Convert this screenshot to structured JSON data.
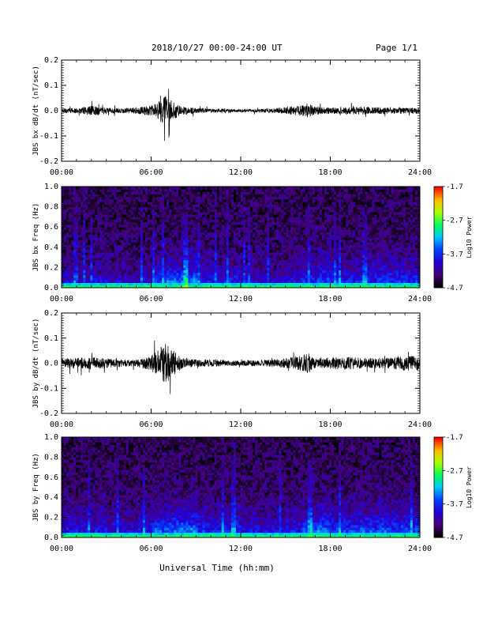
{
  "header": {
    "title": "2018/10/27  00:00-24:00 UT",
    "page": "Page 1/1"
  },
  "footer": {
    "xlabel": "Universal Time (hh:mm)"
  },
  "chart_data": [
    {
      "type": "line",
      "ylabel": "JBS bx dB/dt (nT/sec)",
      "ylim": [
        -0.2,
        0.2
      ],
      "yticks": [
        "-0.2",
        "-0.1",
        "0.0",
        "0.1",
        "0.2"
      ],
      "xlim": [
        "00:00",
        "24:00"
      ],
      "xticks": [
        "00:00",
        "06:00",
        "12:00",
        "18:00",
        "24:00"
      ],
      "series": [
        {
          "color": "#000000",
          "x_hours": [
            0,
            1,
            2,
            3,
            4,
            5,
            6,
            6.5,
            7,
            7.5,
            8,
            9,
            10,
            11,
            12,
            13,
            14,
            15,
            16,
            16.5,
            17,
            18,
            19,
            20,
            21,
            22,
            23,
            24
          ],
          "amplitude": [
            0.01,
            0.01,
            0.02,
            0.012,
            0.01,
            0.012,
            0.02,
            0.04,
            0.06,
            0.035,
            0.018,
            0.01,
            0.008,
            0.008,
            0.006,
            0.007,
            0.009,
            0.014,
            0.02,
            0.03,
            0.016,
            0.012,
            0.014,
            0.016,
            0.014,
            0.012,
            0.012,
            0.012
          ]
        }
      ]
    },
    {
      "type": "heatmap",
      "ylabel": "JBS bx Freq (Hz)",
      "ylim": [
        0.0,
        1.0
      ],
      "yticks": [
        "0.0",
        "0.2",
        "0.4",
        "0.6",
        "0.8",
        "1.0"
      ],
      "xlim": [
        "00:00",
        "24:00"
      ],
      "xticks": [
        "00:00",
        "06:00",
        "12:00",
        "18:00",
        "24:00"
      ],
      "colorbar": {
        "label": "Log10 Power",
        "range": [
          -4.7,
          -1.7
        ],
        "ticks": [
          "-1.7",
          "-2.7",
          "-3.7",
          "-4.7"
        ]
      },
      "activity_by_hour": [
        0.35,
        0.3,
        0.4,
        0.35,
        0.3,
        0.4,
        0.6,
        0.75,
        0.8,
        0.5,
        0.45,
        0.5,
        0.35,
        0.3,
        0.3,
        0.4,
        0.55,
        0.65,
        0.5,
        0.5,
        0.55,
        0.6,
        0.6,
        0.55,
        0.5
      ]
    },
    {
      "type": "line",
      "ylabel": "JBS by dB/dt (nT/sec)",
      "ylim": [
        -0.2,
        0.2
      ],
      "yticks": [
        "-0.2",
        "-0.1",
        "0.0",
        "0.1",
        "0.2"
      ],
      "xlim": [
        "00:00",
        "24:00"
      ],
      "xticks": [
        "00:00",
        "06:00",
        "12:00",
        "18:00",
        "24:00"
      ],
      "series": [
        {
          "color": "#000000",
          "x_hours": [
            0,
            1,
            2,
            3,
            4,
            5,
            6,
            6.5,
            7,
            7.5,
            8,
            9,
            10,
            11,
            12,
            13,
            14,
            15,
            16,
            16.5,
            17,
            18,
            19,
            20,
            21,
            22,
            23,
            24
          ],
          "amplitude": [
            0.02,
            0.022,
            0.025,
            0.02,
            0.015,
            0.012,
            0.03,
            0.06,
            0.08,
            0.05,
            0.025,
            0.015,
            0.015,
            0.012,
            0.01,
            0.012,
            0.015,
            0.02,
            0.03,
            0.04,
            0.025,
            0.022,
            0.025,
            0.022,
            0.02,
            0.022,
            0.03,
            0.03
          ]
        }
      ]
    },
    {
      "type": "heatmap",
      "ylabel": "JBS by Freq (Hz)",
      "ylim": [
        0.0,
        1.0
      ],
      "yticks": [
        "0.0",
        "0.2",
        "0.4",
        "0.6",
        "0.8",
        "1.0"
      ],
      "xlim": [
        "00:00",
        "24:00"
      ],
      "xticks": [
        "00:00",
        "06:00",
        "12:00",
        "18:00",
        "24:00"
      ],
      "colorbar": {
        "label": "Log10 Power",
        "range": [
          -4.7,
          -1.7
        ],
        "ticks": [
          "-1.7",
          "-2.7",
          "-3.7",
          "-4.7"
        ]
      },
      "activity_by_hour": [
        0.5,
        0.45,
        0.5,
        0.45,
        0.4,
        0.5,
        0.7,
        0.8,
        0.85,
        0.6,
        0.55,
        0.6,
        0.45,
        0.4,
        0.4,
        0.5,
        0.65,
        0.8,
        0.7,
        0.65,
        0.7,
        0.75,
        0.7,
        0.65,
        0.6
      ]
    }
  ]
}
